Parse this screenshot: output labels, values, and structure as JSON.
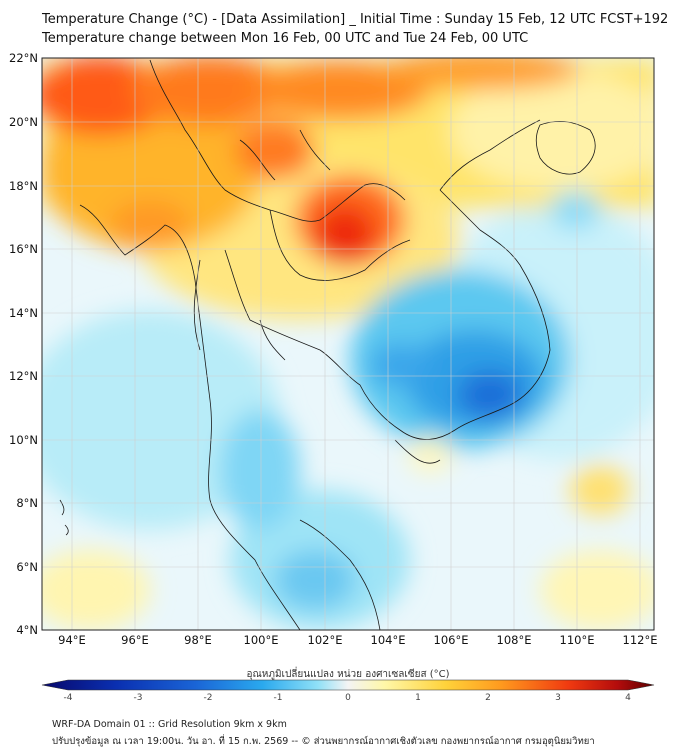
{
  "header": {
    "title_line1": "Temperature Change (°C) - [Data Assimilation] _ Initial Time : Sunday 15 Feb, 12 UTC FCST+192",
    "title_line2": "Temperature change between Mon 16 Feb, 00 UTC and Tue 24 Feb, 00 UTC"
  },
  "map": {
    "lat_labels": [
      "22°N",
      "20°N",
      "18°N",
      "16°N",
      "14°N",
      "12°N",
      "10°N",
      "8°N",
      "6°N",
      "4°N"
    ],
    "lon_labels": [
      "94°E",
      "96°E",
      "98°E",
      "100°E",
      "102°E",
      "104°E",
      "106°E",
      "108°E",
      "110°E",
      "112°E"
    ]
  },
  "colorbar": {
    "label": "อุณหภูมิเปลี่ยนแปลง หน่วย องศาเซลเซียส (°C)",
    "ticks": [
      "-4",
      "-3",
      "-2",
      "-1",
      "0",
      "1",
      "2",
      "3",
      "4"
    ],
    "colors": [
      "#08086b",
      "#0a2fb0",
      "#1a64d6",
      "#2aa9ee",
      "#7fdcf6",
      "#f6f6f6",
      "#fff7a8",
      "#ffd23a",
      "#ff9a1e",
      "#f03a10",
      "#b40c0c",
      "#5a0000"
    ]
  },
  "footer": {
    "line1": "WRF-DA Domain 01 :: Grid Resolution 9km x 9km",
    "line2": "ปรับปรุงข้อมูล ณ เวลา 19:00น. วัน อา. ที่ 15 ก.พ. 2569 -- © ส่วนพยากรณ์อากาศเชิงตัวเลข กองพยากรณ์อากาศ กรมอุตุนิยมวิทยา"
  }
}
